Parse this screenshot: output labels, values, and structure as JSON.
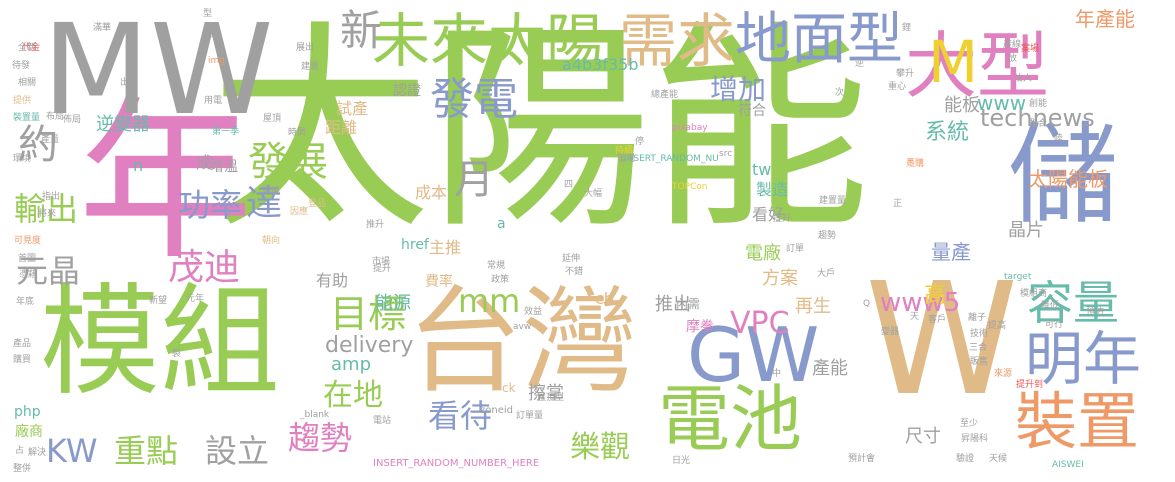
{
  "palette": {
    "green": "#99cc55",
    "gray": "#a0a0a0",
    "blue": "#8899cc",
    "tan": "#e0bb88",
    "pink": "#e080c0",
    "yellow": "#f0d030",
    "orange": "#ee9966",
    "teal": "#66bbaa",
    "red": "#ee5555",
    "purple": "#bb88dd"
  },
  "words": [
    {
      "text": "太陽能",
      "color": "green"
    },
    {
      "text": "年",
      "color": "pink"
    },
    {
      "text": "MW",
      "color": "gray"
    },
    {
      "text": "模組",
      "color": "green"
    },
    {
      "text": "台灣",
      "color": "tan"
    },
    {
      "text": "W",
      "color": "tan"
    },
    {
      "text": "儲",
      "color": "blue"
    },
    {
      "text": "GW",
      "color": "blue"
    },
    {
      "text": "電池",
      "color": "green"
    },
    {
      "text": "大型",
      "color": "pink"
    },
    {
      "text": "未來太陽",
      "color": "green"
    },
    {
      "text": "需求",
      "color": "tan"
    },
    {
      "text": "地面型",
      "color": "blue"
    },
    {
      "text": "裝置",
      "color": "orange"
    },
    {
      "text": "明年",
      "color": "blue"
    },
    {
      "text": "容量",
      "color": "teal"
    },
    {
      "text": "M",
      "color": "yellow"
    },
    {
      "text": "新",
      "color": "gray"
    },
    {
      "text": "發電",
      "color": "blue"
    },
    {
      "text": "月",
      "color": "gray"
    },
    {
      "text": "約",
      "color": "gray"
    },
    {
      "text": "發展",
      "color": "green"
    },
    {
      "text": "達",
      "color": "blue"
    },
    {
      "text": "輸出",
      "color": "green"
    },
    {
      "text": "功率",
      "color": "blue"
    },
    {
      "text": "元晶",
      "color": "gray"
    },
    {
      "text": "茂迪",
      "color": "pink"
    },
    {
      "text": "目標",
      "color": "green"
    },
    {
      "text": "mm",
      "color": "green"
    },
    {
      "text": "KW",
      "color": "blue"
    },
    {
      "text": "重點",
      "color": "green"
    },
    {
      "text": "設立",
      "color": "gray"
    },
    {
      "text": "趨勢",
      "color": "pink"
    },
    {
      "text": "看待",
      "color": "blue"
    },
    {
      "text": "樂觀",
      "color": "green"
    },
    {
      "text": "在地",
      "color": "green"
    },
    {
      "text": "VPC",
      "color": "pink"
    },
    {
      "text": "www5",
      "color": "pink"
    },
    {
      "text": "高",
      "color": "yellow"
    },
    {
      "text": "technews",
      "color": "gray"
    },
    {
      "text": "太陽能板",
      "color": "orange"
    },
    {
      "text": "增加",
      "color": "blue"
    },
    {
      "text": "能板",
      "color": "gray"
    },
    {
      "text": "www",
      "color": "teal"
    },
    {
      "text": "年產能",
      "color": "orange"
    },
    {
      "text": "系統",
      "color": "teal"
    },
    {
      "text": "晶片",
      "color": "gray"
    },
    {
      "text": "量產",
      "color": "blue"
    },
    {
      "text": "電廠",
      "color": "green"
    },
    {
      "text": "方案",
      "color": "tan"
    },
    {
      "text": "再生",
      "color": "tan"
    },
    {
      "text": "推出",
      "color": "gray"
    },
    {
      "text": "cb",
      "color": "tan"
    },
    {
      "text": "delivery",
      "color": "gray"
    },
    {
      "text": "amp",
      "color": "teal"
    },
    {
      "text": "擦掌",
      "color": "gray"
    },
    {
      "text": "產能",
      "color": "gray"
    },
    {
      "text": "尺寸",
      "color": "gray"
    },
    {
      "text": "能源",
      "color": "teal"
    },
    {
      "text": "有助",
      "color": "gray"
    },
    {
      "text": "成本",
      "color": "tan"
    },
    {
      "text": "逆變器",
      "color": "teal"
    },
    {
      "text": "主推",
      "color": "tan"
    },
    {
      "text": "看好",
      "color": "gray"
    },
    {
      "text": "製造",
      "color": "teal"
    },
    {
      "text": "tw",
      "color": "teal"
    },
    {
      "text": "試產",
      "color": "tan"
    },
    {
      "text": "距離",
      "color": "tan"
    },
    {
      "text": "認證",
      "color": "gray"
    },
    {
      "text": "符合",
      "color": "gray"
    },
    {
      "text": "a4b3f35b",
      "color": "teal"
    },
    {
      "text": "php",
      "color": "teal"
    },
    {
      "text": "廠商",
      "color": "green"
    },
    {
      "text": "n",
      "color": "teal"
    },
    {
      "text": "成",
      "color": "gray"
    },
    {
      "text": "增溫",
      "color": "gray"
    },
    {
      "text": "href",
      "color": "teal"
    },
    {
      "text": "a",
      "color": "teal"
    },
    {
      "text": "費率",
      "color": "tan"
    },
    {
      "text": "內需",
      "color": "gray"
    },
    {
      "text": "摩拳",
      "color": "pink"
    },
    {
      "text": "zoneid",
      "color": "gray"
    },
    {
      "text": "ck",
      "color": "tan"
    },
    {
      "text": "INSERT_RANDOM_NUMBER_HERE",
      "color": "pink"
    },
    {
      "text": "INSERT_RANDOM_NU",
      "color": "teal"
    },
    {
      "text": "pixabay",
      "color": "pink"
    },
    {
      "text": "TOPCon",
      "color": "yellow"
    },
    {
      "text": "AISWEI",
      "color": "teal"
    },
    {
      "text": "target",
      "color": "teal"
    },
    {
      "text": "Q",
      "color": "gray"
    },
    {
      "text": "avw",
      "color": "gray"
    },
    {
      "text": "_blank",
      "color": "gray"
    },
    {
      "text": "img",
      "color": "orange"
    },
    {
      "text": "代金",
      "color": "red"
    },
    {
      "text": "全新",
      "color": "gray"
    },
    {
      "text": "待發",
      "color": "gray"
    },
    {
      "text": "相關",
      "color": "gray"
    },
    {
      "text": "提供",
      "color": "tan"
    },
    {
      "text": "裝置量",
      "color": "teal"
    },
    {
      "text": "布局",
      "color": "gray"
    },
    {
      "text": "產量",
      "color": "gray"
    },
    {
      "text": "環境",
      "color": "gray"
    },
    {
      "text": "將來",
      "color": "gray"
    },
    {
      "text": "可見度",
      "color": "orange"
    },
    {
      "text": "首圖",
      "color": "gray"
    },
    {
      "text": "憑藉",
      "color": "gray"
    },
    {
      "text": "年底",
      "color": "gray"
    },
    {
      "text": "產品",
      "color": "gray"
    },
    {
      "text": "購買",
      "color": "gray"
    },
    {
      "text": "解決",
      "color": "gray"
    },
    {
      "text": "整併",
      "color": "gray"
    },
    {
      "text": "佈局",
      "color": "gray"
    },
    {
      "text": "出貨",
      "color": "gray"
    },
    {
      "text": "用電",
      "color": "gray"
    },
    {
      "text": "第一季",
      "color": "teal"
    },
    {
      "text": "時間",
      "color": "gray"
    },
    {
      "text": "表現",
      "color": "gray"
    },
    {
      "text": "展出",
      "color": "gray"
    },
    {
      "text": "建置",
      "color": "gray"
    },
    {
      "text": "屋頂",
      "color": "gray"
    },
    {
      "text": "指出",
      "color": "gray"
    },
    {
      "text": "現場",
      "color": "gray"
    },
    {
      "text": "因應",
      "color": "tan"
    },
    {
      "text": "登品",
      "color": "tan"
    },
    {
      "text": "朝向",
      "color": "tan"
    },
    {
      "text": "推升",
      "color": "gray"
    },
    {
      "text": "市場",
      "color": "gray"
    },
    {
      "text": "提升",
      "color": "gray"
    },
    {
      "text": "常規",
      "color": "gray"
    },
    {
      "text": "政策",
      "color": "gray"
    },
    {
      "text": "延伸",
      "color": "gray"
    },
    {
      "text": "不錯",
      "color": "gray"
    },
    {
      "text": "新望",
      "color": "gray"
    },
    {
      "text": "元年",
      "color": "gray"
    },
    {
      "text": "效益",
      "color": "gray"
    },
    {
      "text": "屋頂型",
      "color": "gray"
    },
    {
      "text": "訂單量",
      "color": "gray"
    },
    {
      "text": "電站",
      "color": "gray"
    },
    {
      "text": "日光",
      "color": "gray"
    },
    {
      "text": "預計會",
      "color": "gray"
    },
    {
      "text": "驗證",
      "color": "gray"
    },
    {
      "text": "天候",
      "color": "gray"
    },
    {
      "text": "昇陽科",
      "color": "gray"
    },
    {
      "text": "至少",
      "color": "gray"
    },
    {
      "text": "來源",
      "color": "orange"
    },
    {
      "text": "提升到",
      "color": "red"
    },
    {
      "text": "技術",
      "color": "gray"
    },
    {
      "text": "三合",
      "color": "gray"
    },
    {
      "text": "販售",
      "color": "gray"
    },
    {
      "text": "客戶",
      "color": "gray"
    },
    {
      "text": "離子",
      "color": "gray"
    },
    {
      "text": "提高",
      "color": "gray"
    },
    {
      "text": "可行",
      "color": "gray"
    },
    {
      "text": "降低",
      "color": "gray"
    },
    {
      "text": "預估",
      "color": "gray"
    },
    {
      "text": "模組商",
      "color": "gray"
    },
    {
      "text": "大戶",
      "color": "gray"
    },
    {
      "text": "訂單",
      "color": "gray"
    },
    {
      "text": "趨勢",
      "color": "gray"
    },
    {
      "text": "建置量",
      "color": "gray"
    },
    {
      "text": "變器",
      "color": "gray"
    },
    {
      "text": "天",
      "color": "gray"
    },
    {
      "text": "中",
      "color": "gray"
    },
    {
      "text": "大幅",
      "color": "gray"
    },
    {
      "text": "四",
      "color": "gray"
    },
    {
      "text": "電場",
      "color": "gray"
    },
    {
      "text": "停",
      "color": "gray"
    },
    {
      "text": "持續",
      "color": "yellow"
    },
    {
      "text": "src",
      "color": "gray"
    },
    {
      "text": "提升",
      "color": "gray"
    },
    {
      "text": "陸",
      "color": "gray"
    },
    {
      "text": "創能",
      "color": "gray"
    },
    {
      "text": "聯合",
      "color": "gray"
    },
    {
      "text": "次",
      "color": "gray"
    },
    {
      "text": "重心",
      "color": "gray"
    },
    {
      "text": "攀升",
      "color": "gray"
    },
    {
      "text": "法人",
      "color": "gray"
    },
    {
      "text": "產線",
      "color": "gray"
    },
    {
      "text": "案場",
      "color": "red"
    },
    {
      "text": "放",
      "color": "gray"
    },
    {
      "text": "總產能",
      "color": "gray"
    },
    {
      "text": "躉購",
      "color": "orange"
    },
    {
      "text": "滿華",
      "color": "gray"
    },
    {
      "text": "逆",
      "color": "gray"
    },
    {
      "text": "型",
      "color": "gray"
    },
    {
      "text": "鋰",
      "color": "gray"
    },
    {
      "text": "占",
      "color": "gray"
    },
    {
      "text": "製",
      "color": "gray"
    },
    {
      "text": "正",
      "color": "gray"
    }
  ]
}
